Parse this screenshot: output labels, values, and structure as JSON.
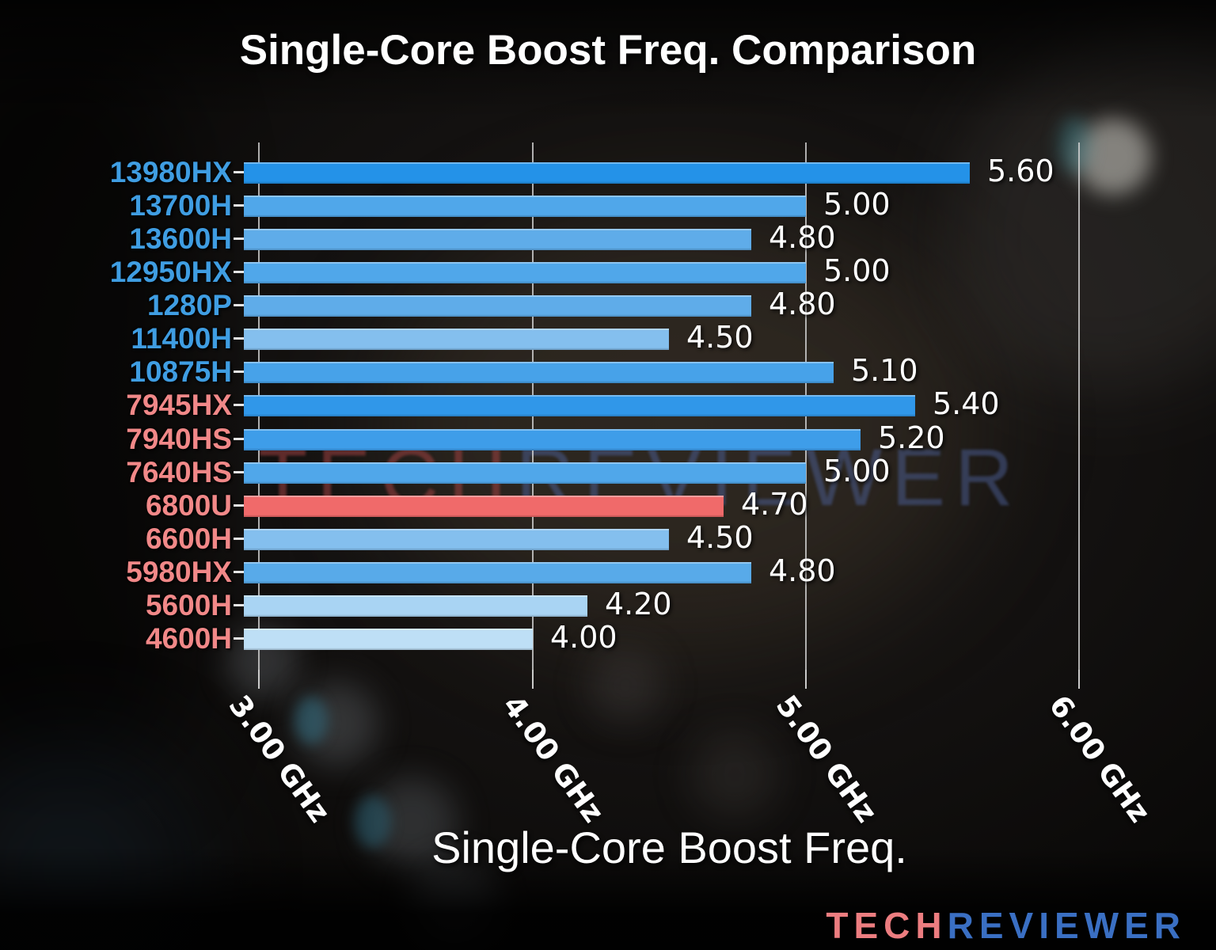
{
  "title": "Single-Core Boost Freq. Comparison",
  "x_axis_title": "Single-Core Boost Freq.",
  "watermark": {
    "tech": "TECH",
    "reviewer": "REVIEWER",
    "tech_color": "rgba(158,66,66,0.55)",
    "reviewer_color": "rgba(76,96,152,0.50)"
  },
  "logo": {
    "tech": "TECH",
    "reviewer": "REVIEWER",
    "tech_color": "#ec7d80",
    "reviewer_color": "#3a6fc3"
  },
  "label_colors": {
    "intel": "#3f9de2",
    "amd": "#f18888"
  },
  "chart_data": {
    "type": "bar",
    "orientation": "horizontal",
    "title": "Single-Core Boost Freq. Comparison",
    "xlabel": "Single-Core Boost Freq.",
    "ylabel": "",
    "unit": "GHz",
    "xlim": [
      2.944,
      6.44
    ],
    "grid": true,
    "xticks": [
      {
        "value": 3,
        "label": "3.00 GHz"
      },
      {
        "value": 4,
        "label": "4.00 GHz"
      },
      {
        "value": 5,
        "label": "5.00 GHz"
      },
      {
        "value": 6,
        "label": "6.00 GHz"
      }
    ],
    "series": [
      {
        "label": "13980HX",
        "vendor": "intel",
        "value": 5.6,
        "display": "5.60",
        "color": "#2492e8"
      },
      {
        "label": "13700H",
        "vendor": "intel",
        "value": 5.0,
        "display": "5.00",
        "color": "#50a7ea"
      },
      {
        "label": "13600H",
        "vendor": "intel",
        "value": 4.8,
        "display": "4.80",
        "color": "#5face9"
      },
      {
        "label": "12950HX",
        "vendor": "intel",
        "value": 5.0,
        "display": "5.00",
        "color": "#50a7ea"
      },
      {
        "label": "1280P",
        "vendor": "intel",
        "value": 4.8,
        "display": "4.80",
        "color": "#5face9"
      },
      {
        "label": "11400H",
        "vendor": "intel",
        "value": 4.5,
        "display": "4.50",
        "color": "#84bfee"
      },
      {
        "label": "10875H",
        "vendor": "intel",
        "value": 5.1,
        "display": "5.10",
        "color": "#47a2e9"
      },
      {
        "label": "7945HX",
        "vendor": "amd",
        "value": 5.4,
        "display": "5.40",
        "color": "#3097e9"
      },
      {
        "label": "7940HS",
        "vendor": "amd",
        "value": 5.2,
        "display": "5.20",
        "color": "#3e9de9"
      },
      {
        "label": "7640HS",
        "vendor": "amd",
        "value": 5.0,
        "display": "5.00",
        "color": "#50a7ea"
      },
      {
        "label": "6800U",
        "vendor": "amd",
        "value": 4.7,
        "display": "4.70",
        "color": "#f06a6a",
        "highlight": true
      },
      {
        "label": "6600H",
        "vendor": "amd",
        "value": 4.5,
        "display": "4.50",
        "color": "#84bfee"
      },
      {
        "label": "5980HX",
        "vendor": "amd",
        "value": 4.8,
        "display": "4.80",
        "color": "#58aae9"
      },
      {
        "label": "5600H",
        "vendor": "amd",
        "value": 4.2,
        "display": "4.20",
        "color": "#a9d4f3"
      },
      {
        "label": "4600H",
        "vendor": "amd",
        "value": 4.0,
        "display": "4.00",
        "color": "#bedff6"
      }
    ]
  }
}
